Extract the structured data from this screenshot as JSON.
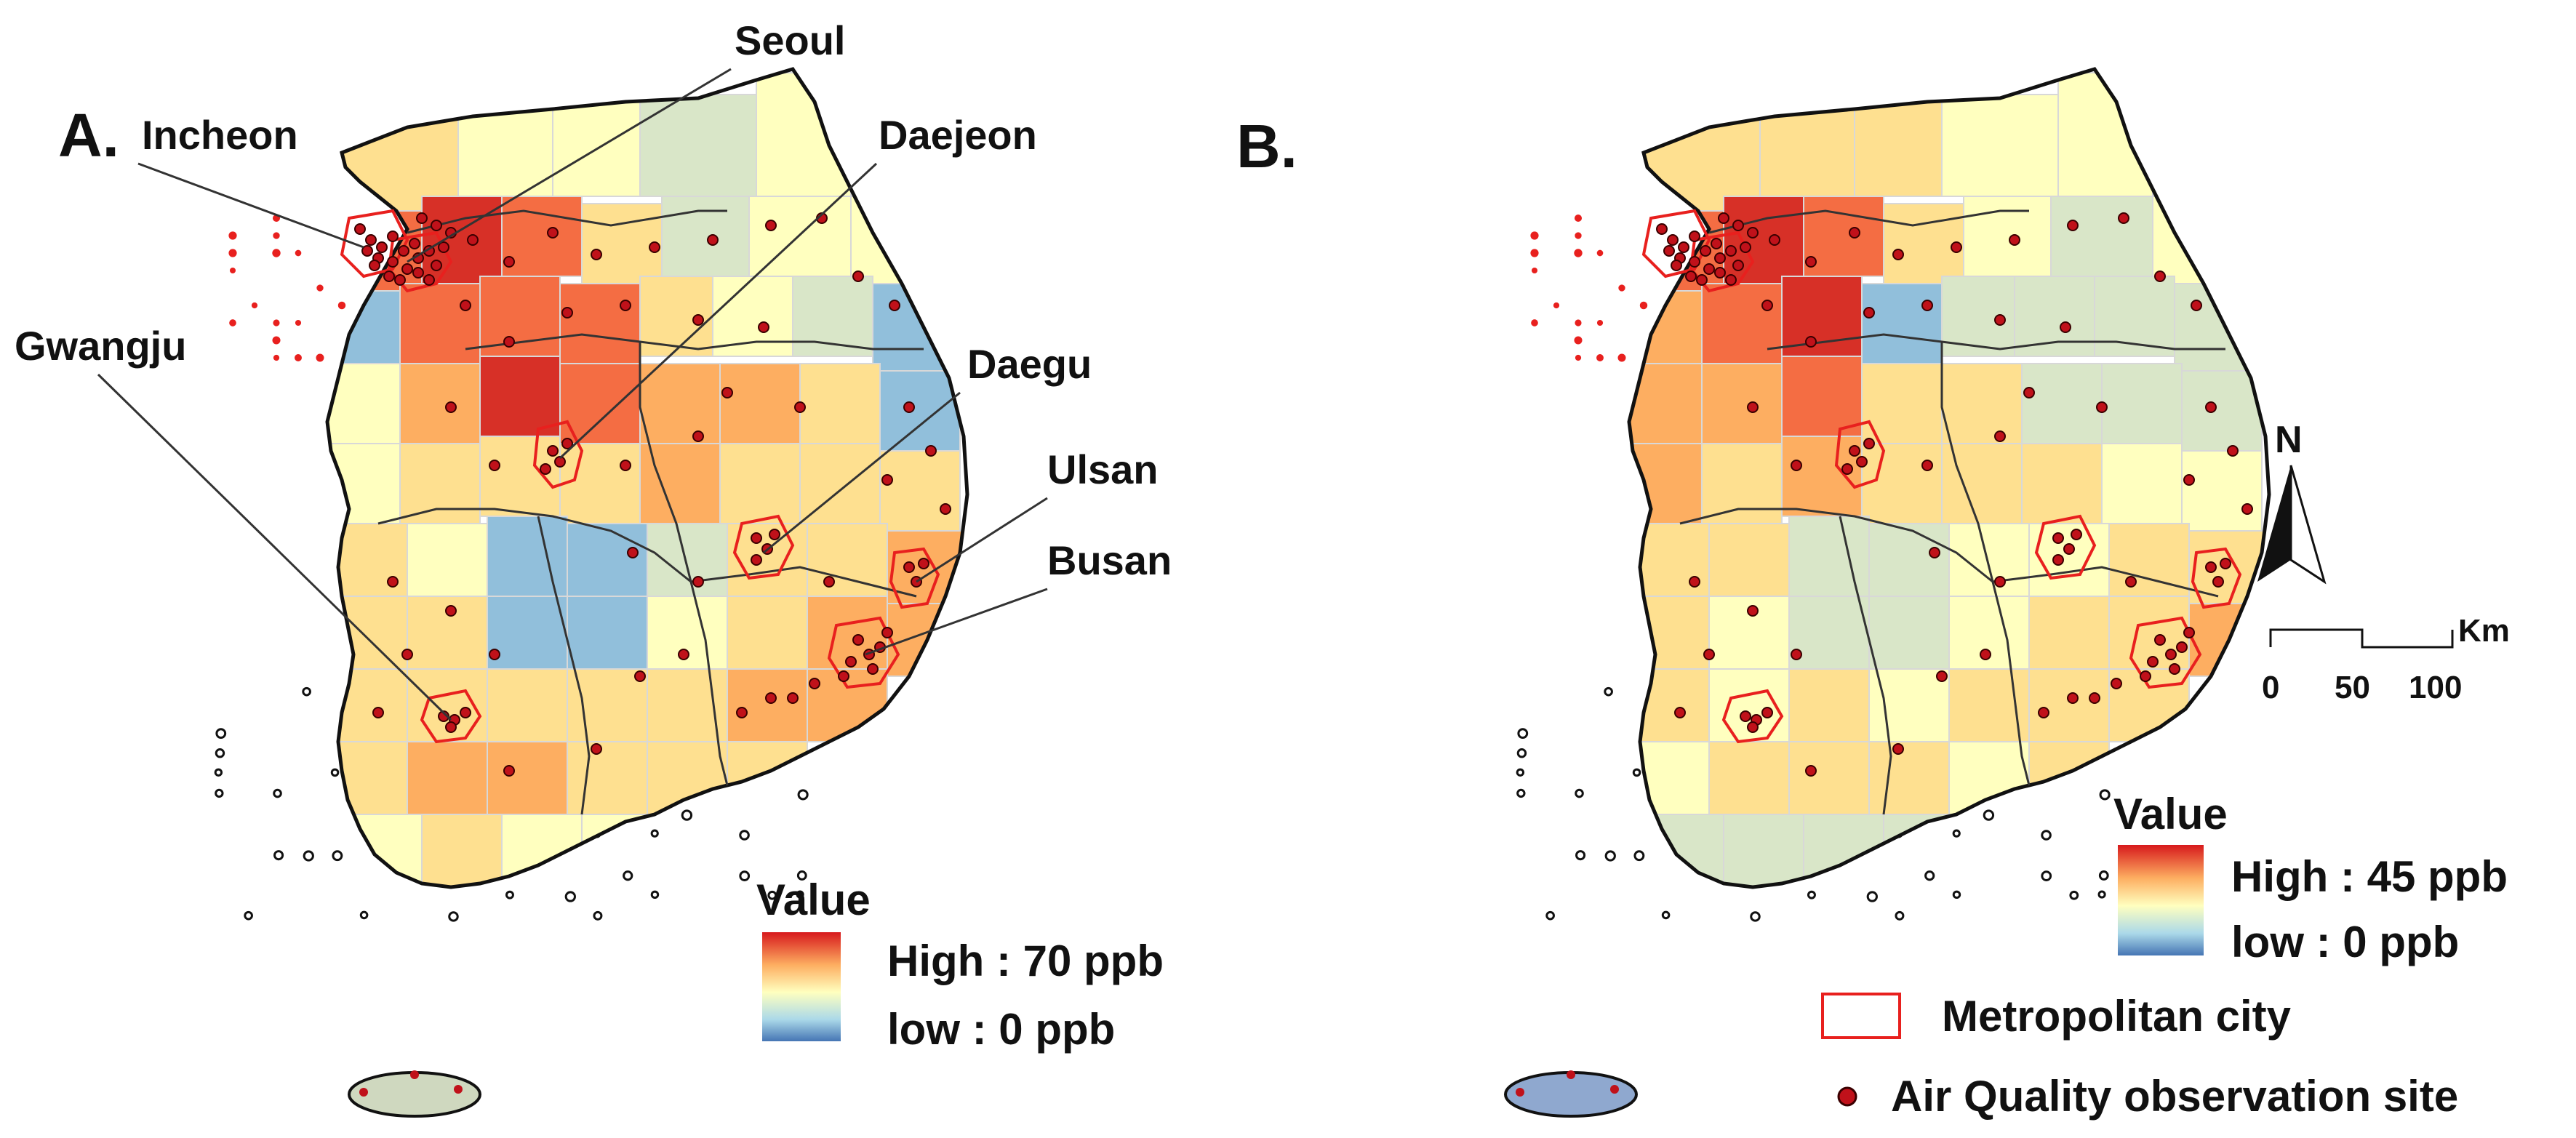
{
  "panels": [
    {
      "id": "A",
      "label": "A.",
      "city_labels": [
        "Incheon",
        "Seoul",
        "Daejeon",
        "Gwangju",
        "Daegu",
        "Ulsan",
        "Busan"
      ],
      "legend": {
        "title": "Value",
        "high": "High : 70 ppb",
        "low": "low : 0 ppb",
        "high_value_ppb": 70,
        "low_value_ppb": 0
      }
    },
    {
      "id": "B",
      "label": "B.",
      "legend": {
        "title": "Value",
        "high": "High : 45 ppb",
        "low": "low : 0 ppb",
        "high_value_ppb": 45,
        "low_value_ppb": 0
      }
    }
  ],
  "shared_legend": {
    "metro": "Metropolitan city",
    "site": "Air Quality observation site"
  },
  "north_arrow": {
    "label": "N"
  },
  "scale_bar": {
    "unit": "Km",
    "ticks": [
      "0",
      "50",
      "100"
    ]
  },
  "colors": {
    "high": "#d7191c",
    "mid": "#ffffbf",
    "low": "#2c7bb6",
    "metro_outline": "#e8201e",
    "site_dot": "#8b0000",
    "background": "#ffffff"
  }
}
